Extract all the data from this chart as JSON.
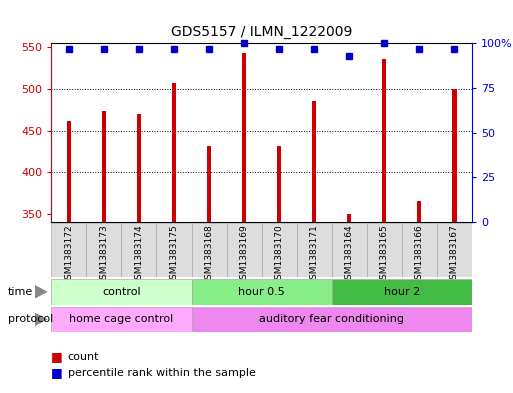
{
  "title": "GDS5157 / ILMN_1222009",
  "samples": [
    "GSM1383172",
    "GSM1383173",
    "GSM1383174",
    "GSM1383175",
    "GSM1383168",
    "GSM1383169",
    "GSM1383170",
    "GSM1383171",
    "GSM1383164",
    "GSM1383165",
    "GSM1383166",
    "GSM1383167"
  ],
  "bar_values": [
    462,
    473,
    470,
    507,
    432,
    543,
    431,
    485,
    350,
    536,
    365,
    500
  ],
  "percentile_values": [
    97,
    97,
    97,
    97,
    97,
    100,
    97,
    97,
    93,
    100,
    97,
    97
  ],
  "bar_color": "#cc0000",
  "dot_color": "#0000cc",
  "ylim_left": [
    340,
    555
  ],
  "ylim_right": [
    0,
    100
  ],
  "yticks_left": [
    350,
    400,
    450,
    500,
    550
  ],
  "yticks_right": [
    0,
    25,
    50,
    75,
    100
  ],
  "grid_values": [
    400,
    450,
    500
  ],
  "time_groups": [
    {
      "label": "control",
      "start": 0,
      "end": 4,
      "color": "#ccffcc"
    },
    {
      "label": "hour 0.5",
      "start": 4,
      "end": 8,
      "color": "#88ee88"
    },
    {
      "label": "hour 2",
      "start": 8,
      "end": 12,
      "color": "#44bb44"
    }
  ],
  "protocol_groups": [
    {
      "label": "home cage control",
      "start": 0,
      "end": 4,
      "color": "#ffaaff"
    },
    {
      "label": "auditory fear conditioning",
      "start": 4,
      "end": 12,
      "color": "#ee88ee"
    }
  ],
  "legend_count_label": "count",
  "legend_percentile_label": "percentile rank within the sample",
  "background_color": "#ffffff",
  "tick_color_left": "#cc0000",
  "tick_color_right": "#0000cc",
  "bar_width": 0.12
}
